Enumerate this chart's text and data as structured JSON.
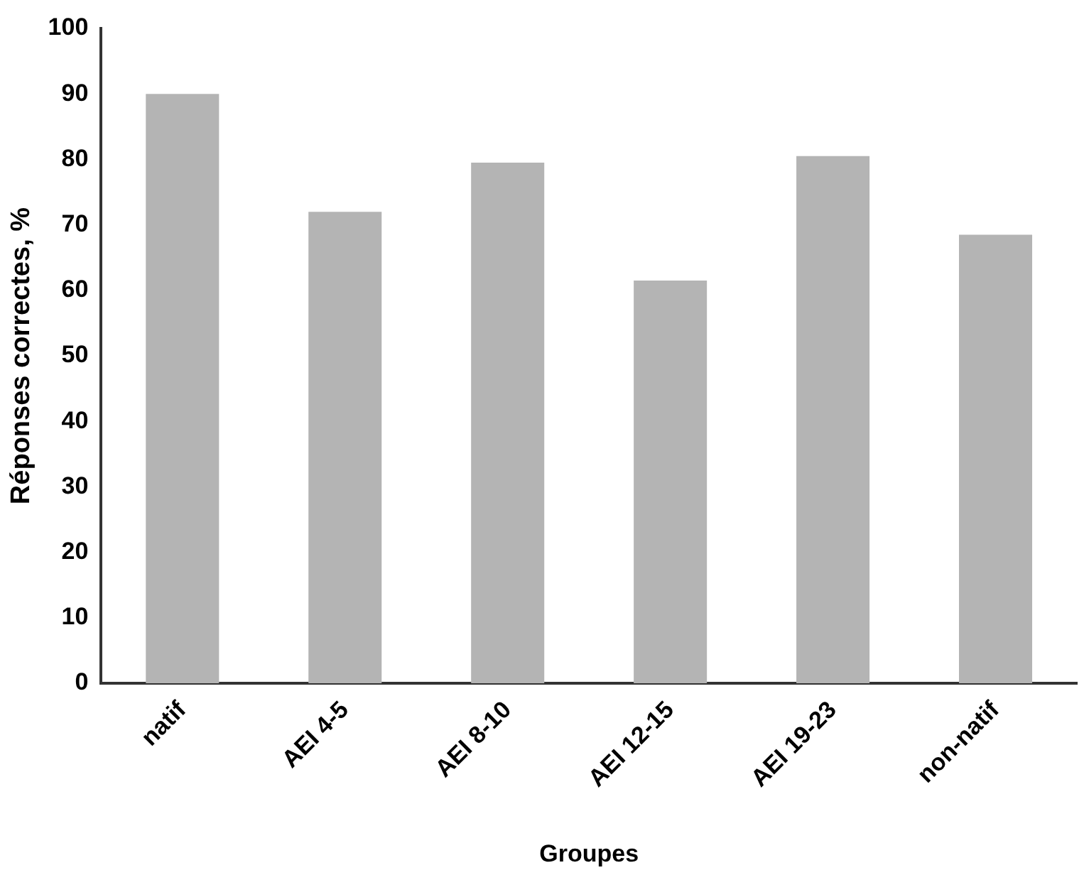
{
  "chart_data": {
    "type": "bar",
    "xlabel": "Groupes",
    "ylabel": "Réponses correctes, %",
    "categories": [
      "natif",
      "AEI 4-5",
      "AEI 8-10",
      "AEI 12-15",
      "AEI 19-23",
      "non-natif"
    ],
    "values": [
      90,
      72,
      79.5,
      61.5,
      80.5,
      68.5
    ],
    "color": "#b4b4b4",
    "ylim": [
      0,
      100
    ],
    "yticks": [
      0,
      10,
      20,
      30,
      40,
      50,
      60,
      70,
      80,
      90,
      100
    ],
    "grid": false,
    "legend": false
  }
}
